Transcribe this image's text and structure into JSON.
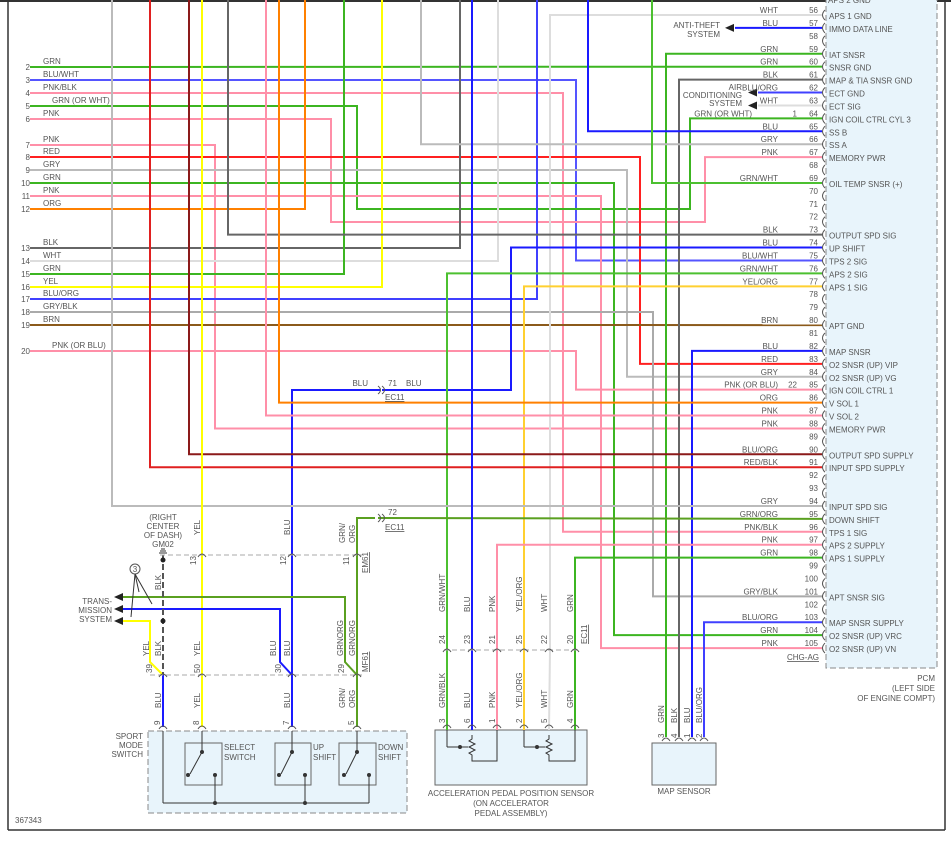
{
  "wire_colors": {
    "GRN": "#3cb521",
    "BLU": "#1a1aff",
    "PNK": "#ff8fa8",
    "RED": "#ff2020",
    "GRY": "#bbbbbb",
    "ORG": "#ff8000",
    "BLK": "#666666",
    "WHT": "#dddddd",
    "YEL": "#ffff00",
    "BRN": "#8b5a1b",
    "BLU/WHT": "#5555ff",
    "PNK/BLK": "#ff8fa8",
    "GRN/WHT": "#4cc030",
    "YEL/ORG": "#ffd030",
    "BLU/ORG": "#4040ff",
    "RED/BLK": "#e02020",
    "GRY/BLK": "#aaaaaa",
    "GRN/ORG": "#5aa020",
    "DKRED": "#8b1a1a"
  },
  "left_connector": [
    {
      "num": "2",
      "wire": "GRN"
    },
    {
      "num": "3",
      "wire": "BLU/WHT"
    },
    {
      "num": "4",
      "wire": "PNK/BLK"
    },
    {
      "num": "5",
      "wire": "GRN (OR WHT)"
    },
    {
      "num": "6",
      "wire": "PNK"
    },
    {
      "num": "7",
      "wire": "PNK"
    },
    {
      "num": "8",
      "wire": "RED"
    },
    {
      "num": "9",
      "wire": "GRY"
    },
    {
      "num": "10",
      "wire": "GRN"
    },
    {
      "num": "11",
      "wire": "PNK"
    },
    {
      "num": "12",
      "wire": "ORG"
    },
    {
      "num": "13",
      "wire": "BLK"
    },
    {
      "num": "14",
      "wire": "WHT"
    },
    {
      "num": "15",
      "wire": "GRN"
    },
    {
      "num": "16",
      "wire": "YEL"
    },
    {
      "num": "17",
      "wire": "BLU/ORG"
    },
    {
      "num": "18",
      "wire": "GRY/BLK"
    },
    {
      "num": "19",
      "wire": "BRN"
    },
    {
      "num": "20",
      "wire": "PNK (OR BLU)"
    }
  ],
  "pcm": {
    "top_cut_label": "APS 2 GND",
    "pins": [
      {
        "num": "56",
        "wire": "WHT",
        "func": "APS 1 GND"
      },
      {
        "num": "57",
        "wire": "BLU",
        "func": "IMMO DATA LINE"
      },
      {
        "num": "58",
        "wire": "",
        "func": ""
      },
      {
        "num": "59",
        "wire": "GRN",
        "func": "IAT SNSR"
      },
      {
        "num": "60",
        "wire": "GRN",
        "func": "SNSR GND"
      },
      {
        "num": "61",
        "wire": "BLK",
        "func": "MAP & TIA SNSR GND"
      },
      {
        "num": "62",
        "wire": "BLU/ORG",
        "func": "ECT GND"
      },
      {
        "num": "63",
        "wire": "WHT",
        "func": "ECT SIG"
      },
      {
        "num": "64",
        "wire": "GRN  (OR WHT)",
        "func": "IGN COIL CTRL CYL 3",
        "inline": "1"
      },
      {
        "num": "65",
        "wire": "BLU",
        "func": "SS B"
      },
      {
        "num": "66",
        "wire": "GRY",
        "func": "SS A"
      },
      {
        "num": "67",
        "wire": "PNK",
        "func": "MEMORY PWR"
      },
      {
        "num": "68",
        "wire": "",
        "func": ""
      },
      {
        "num": "69",
        "wire": "GRN/WHT",
        "func": "OIL TEMP SNSR (+)"
      },
      {
        "num": "70",
        "wire": "",
        "func": ""
      },
      {
        "num": "71",
        "wire": "",
        "func": ""
      },
      {
        "num": "72",
        "wire": "",
        "func": ""
      },
      {
        "num": "73",
        "wire": "BLK",
        "func": "OUTPUT SPD SIG"
      },
      {
        "num": "74",
        "wire": "BLU",
        "func": "UP SHIFT"
      },
      {
        "num": "75",
        "wire": "BLU/WHT",
        "func": "TPS 2 SIG"
      },
      {
        "num": "76",
        "wire": "GRN/WHT",
        "func": "APS 2 SIG"
      },
      {
        "num": "77",
        "wire": "YEL/ORG",
        "func": "APS 1 SIG"
      },
      {
        "num": "78",
        "wire": "",
        "func": ""
      },
      {
        "num": "79",
        "wire": "",
        "func": ""
      },
      {
        "num": "80",
        "wire": "BRN",
        "func": "APT GND"
      },
      {
        "num": "81",
        "wire": "",
        "func": ""
      },
      {
        "num": "82",
        "wire": "BLU",
        "func": "MAP SNSR"
      },
      {
        "num": "83",
        "wire": "RED",
        "func": "O2 SNSR (UP) VIP"
      },
      {
        "num": "84",
        "wire": "GRY",
        "func": "O2 SNSR (UP) VG"
      },
      {
        "num": "85",
        "wire": "PNK (OR BLU)",
        "func": "IGN COIL CTRL 1",
        "inline": "22"
      },
      {
        "num": "86",
        "wire": "ORG",
        "func": "V SOL 1"
      },
      {
        "num": "87",
        "wire": "PNK",
        "func": "V SOL 2"
      },
      {
        "num": "88",
        "wire": "PNK",
        "func": "MEMORY PWR"
      },
      {
        "num": "89",
        "wire": "",
        "func": ""
      },
      {
        "num": "90",
        "wire": "BLU/ORG",
        "func": "OUTPUT SPD SUPPLY"
      },
      {
        "num": "91",
        "wire": "RED/BLK",
        "func": "INPUT SPD SUPPLY"
      },
      {
        "num": "92",
        "wire": "",
        "func": ""
      },
      {
        "num": "93",
        "wire": "",
        "func": ""
      },
      {
        "num": "94",
        "wire": "GRY",
        "func": "INPUT SPD SIG"
      },
      {
        "num": "95",
        "wire": "GRN/ORG",
        "func": "DOWN SHIFT"
      },
      {
        "num": "96",
        "wire": "PNK/BLK",
        "func": "TPS 1 SIG"
      },
      {
        "num": "97",
        "wire": "PNK",
        "func": "APS 2 SUPPLY"
      },
      {
        "num": "98",
        "wire": "GRN",
        "func": "APS 1 SUPPLY"
      },
      {
        "num": "99",
        "wire": "",
        "func": ""
      },
      {
        "num": "100",
        "wire": "",
        "func": ""
      },
      {
        "num": "101",
        "wire": "GRY/BLK",
        "func": "APT SNSR SIG"
      },
      {
        "num": "102",
        "wire": "",
        "func": ""
      },
      {
        "num": "103",
        "wire": "BLU/ORG",
        "func": "MAP SNSR SUPPLY"
      },
      {
        "num": "104",
        "wire": "GRN",
        "func": "O2 SNSR (UP) VRC"
      },
      {
        "num": "105",
        "wire": "PNK",
        "func": "O2 SNSR (UP) VN"
      }
    ],
    "connector_id": "CHG-AG",
    "name": [
      "PCM",
      "(LEFT SIDE",
      "OF ENGINE COMPT)"
    ]
  },
  "external": {
    "anti_theft": [
      "ANTI-THEFT",
      "SYSTEM"
    ],
    "air_conditioning": [
      "AIR",
      "CONDITIONING",
      "SYSTEM"
    ],
    "transmission": [
      "TRANS-",
      "MISSION",
      "SYSTEM"
    ],
    "note_callout": "3"
  },
  "inline_ec11": {
    "c71": {
      "num": "71",
      "wire_left": "BLU",
      "wire_right": "BLU",
      "id": "EC11"
    },
    "c72": {
      "num": "72",
      "id": "EC11"
    }
  },
  "sport_switch": {
    "ground": [
      "(RIGHT",
      "CENTER",
      "OF DASH)",
      "GM02"
    ],
    "ground_wire": "BLK",
    "em61": {
      "id": "EM61",
      "pins": [
        "13",
        "12",
        "11"
      ],
      "wires": [
        "YEL",
        "BLU",
        "GRN/",
        "ORG"
      ]
    },
    "mf61": {
      "id": "MF61",
      "pins": [
        "39",
        "50",
        "30",
        "29"
      ],
      "wires_above": [
        "YEL",
        "BLK",
        "YEL",
        "BLU",
        "BLU",
        "GRNORG",
        "GRNORG"
      ],
      "wires_below": [
        "BLU",
        "YEL",
        "BLU",
        "GRN/",
        "ORG"
      ]
    },
    "pins": [
      "9",
      "8",
      "7",
      "5"
    ],
    "name": [
      "SPORT",
      "MODE",
      "SWITCH"
    ],
    "switches": [
      [
        "SELECT",
        "SWITCH"
      ],
      [
        "UP",
        "SHIFT"
      ],
      [
        "DOWN",
        "SHIFT"
      ]
    ]
  },
  "apps": {
    "connector_id": "EC11",
    "upper_pins": [
      "24",
      "23",
      "21",
      "25",
      "22",
      "20"
    ],
    "upper_wires": [
      "GRN/WHT",
      "BLU",
      "PNK",
      "YEL/ORG",
      "WHT",
      "GRN"
    ],
    "lower_pins": [
      "3",
      "6",
      "1",
      "2",
      "5",
      "4"
    ],
    "lower_wires": [
      "GRN/BLK",
      "BLU",
      "PNK",
      "YEL/ORG",
      "WHT",
      "GRN"
    ],
    "name": [
      "ACCELERATION PEDAL POSITION SENSOR",
      "(ON ACCELERATOR",
      "PEDAL ASSEMBLY)"
    ]
  },
  "map_sensor": {
    "pins": [
      "3",
      "4",
      "1",
      "2"
    ],
    "wires": [
      "GRN",
      "BLK",
      "BLU",
      "BLU/ORG"
    ],
    "name": "MAP SENSOR"
  },
  "diagram_id": "367343"
}
